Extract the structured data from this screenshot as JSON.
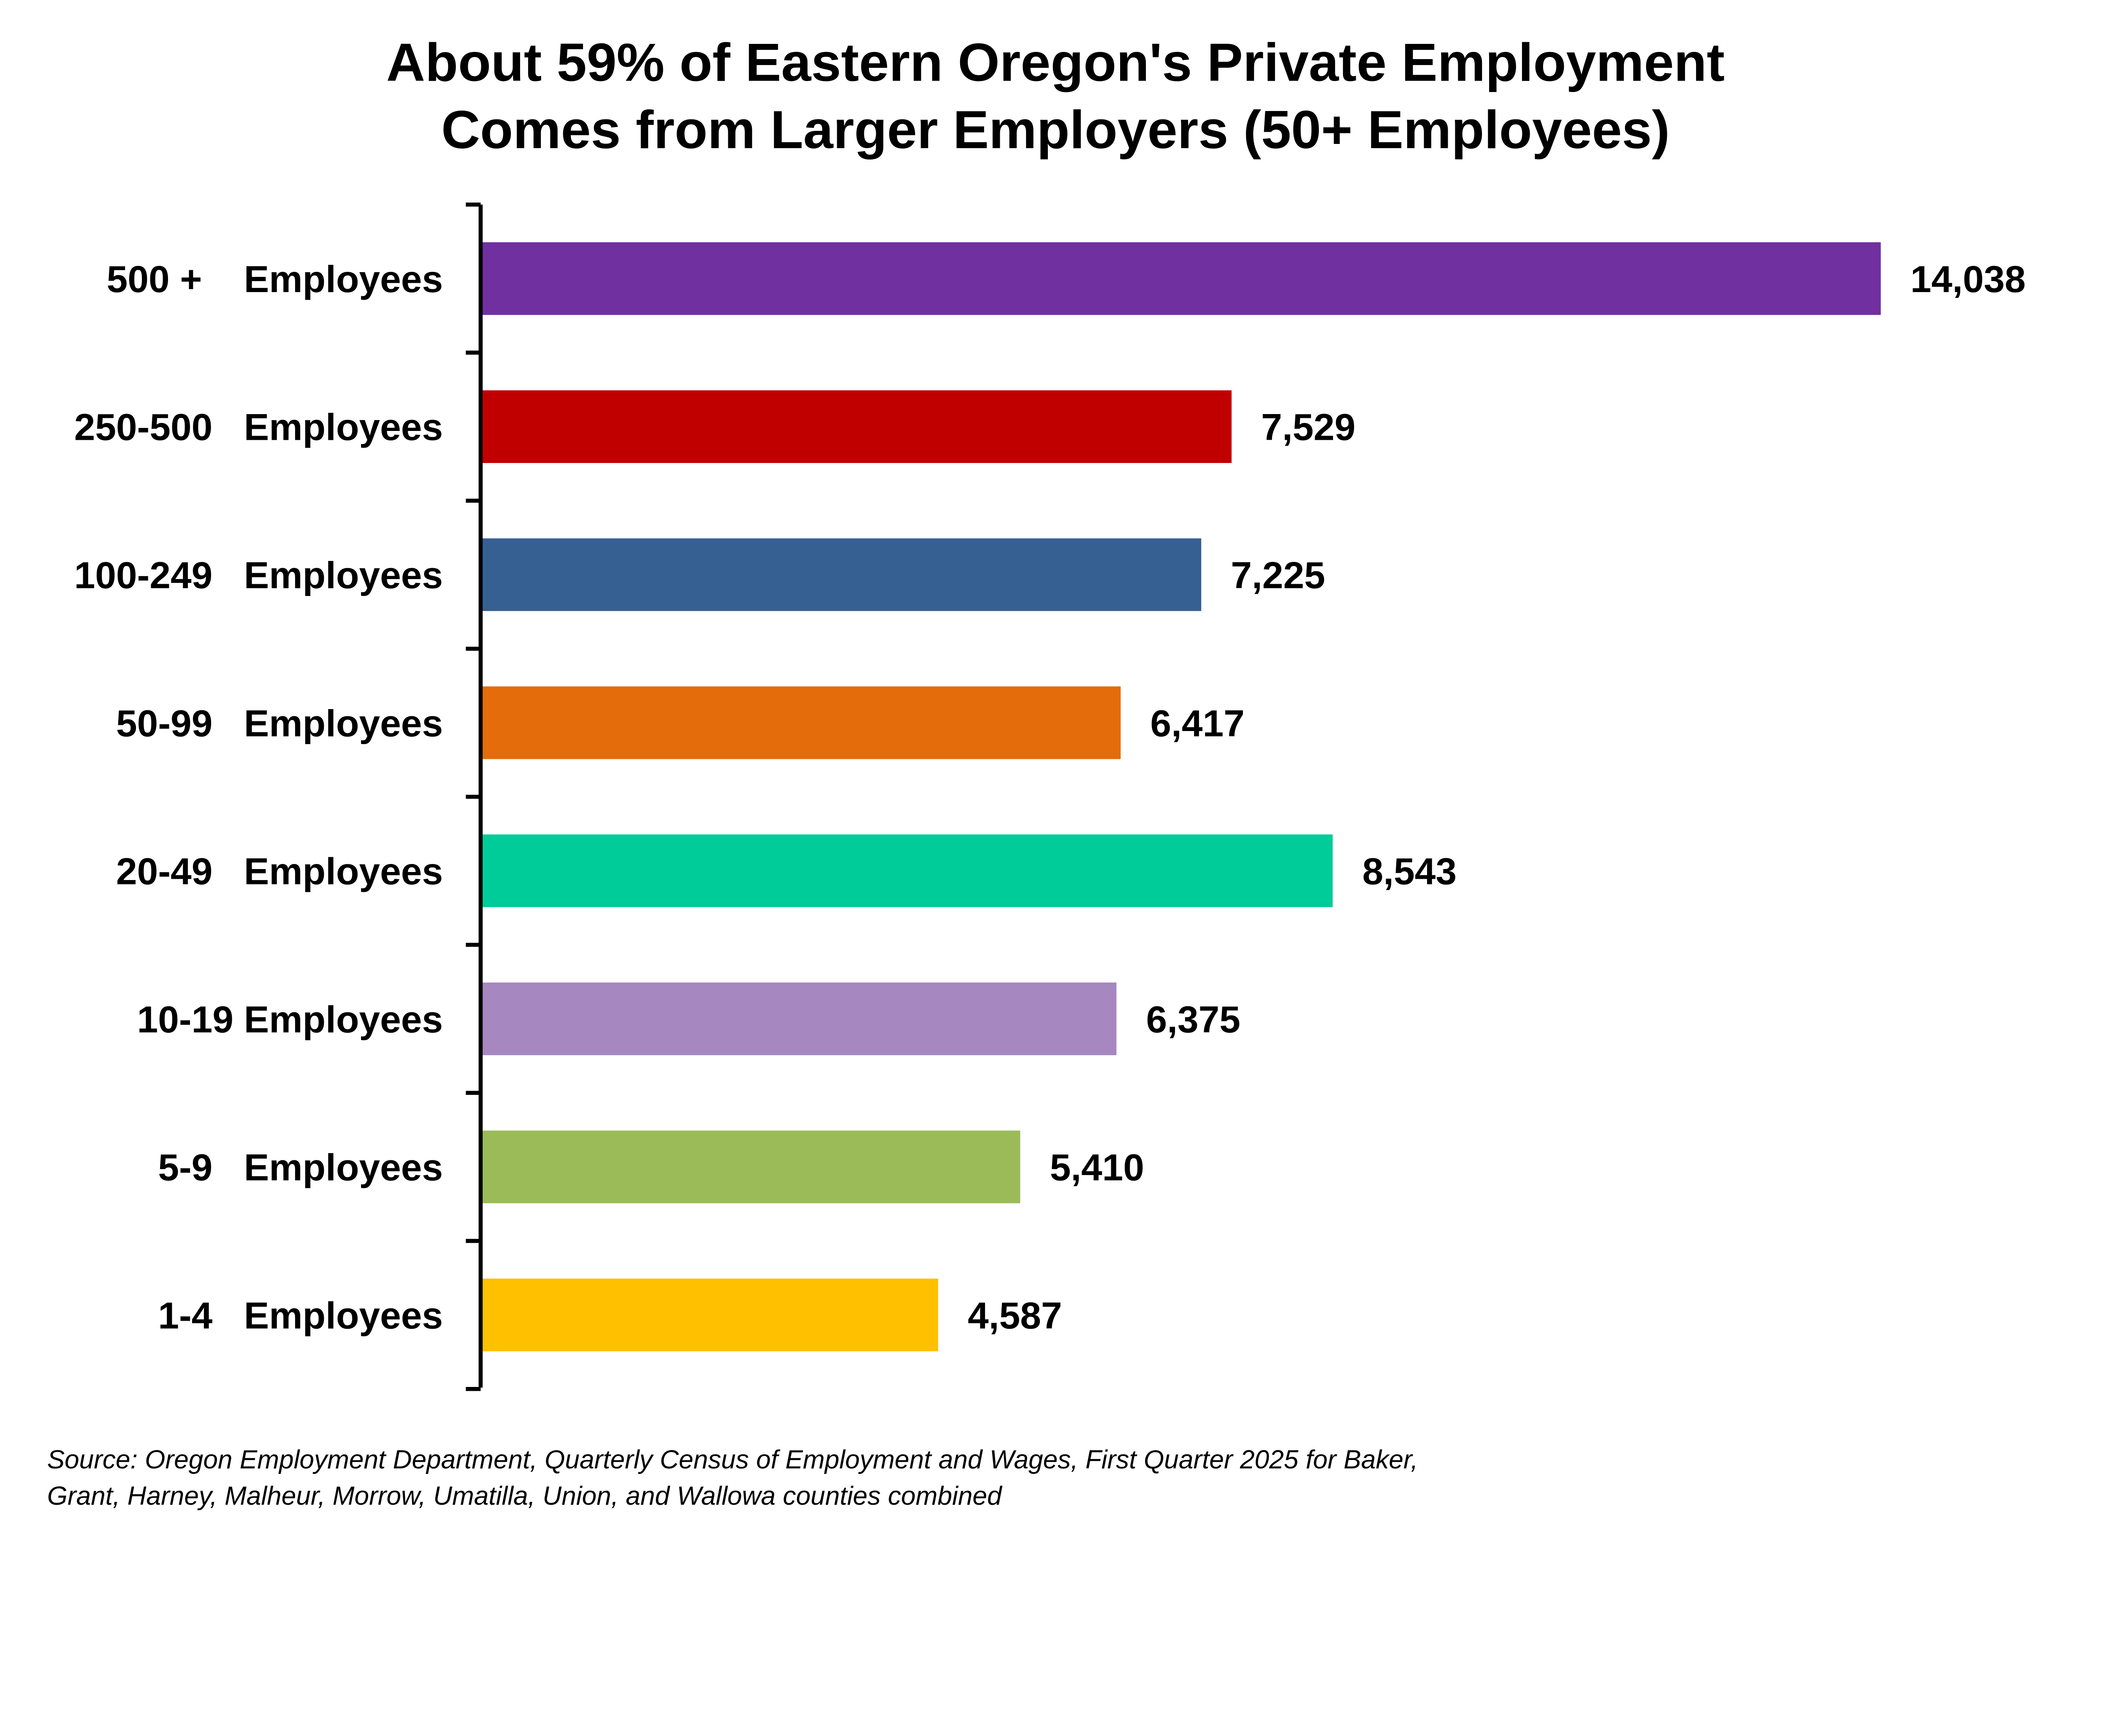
{
  "chart_data": {
    "type": "bar",
    "orientation": "horizontal",
    "title": [
      "About 59% of Eastern Oregon's Private Employment",
      "Comes from Larger Employers (50+ Employees)"
    ],
    "categories": [
      "500 +    Employees",
      "250-500   Employees",
      "100-249   Employees",
      "50-99   Employees",
      "20-49   Employees",
      "10-19 Employees",
      "5-9   Employees",
      "1-4   Employees"
    ],
    "values": [
      14038,
      7529,
      7225,
      6417,
      8543,
      6375,
      5410,
      4587
    ],
    "value_labels": [
      "14,038",
      "7,529",
      "7,225",
      "6,417",
      "8,543",
      "6,375",
      "5,410",
      "4,587"
    ],
    "colors": [
      "#7030A0",
      "#C00000",
      "#376092",
      "#E46C0A",
      "#00CC99",
      "#A687C0",
      "#9BBB59",
      "#FFC000"
    ],
    "xlim": [
      0,
      14038
    ],
    "grid": false,
    "legend": "none",
    "source": [
      "Source: Oregon Employment Department, Quarterly Census of Employment and Wages, First Quarter 2025 for Baker,",
      "Grant, Harney, Malheur, Morrow, Umatilla, Union, and Wallowa counties combined"
    ]
  }
}
